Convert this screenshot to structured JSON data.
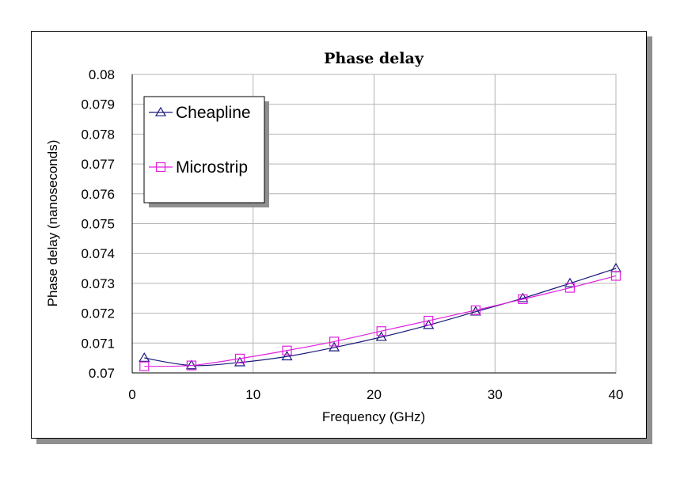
{
  "chart_data": {
    "type": "line",
    "title": "Phase delay",
    "xlabel": "Frequency (GHz)",
    "ylabel": "Phase delay (nanoseconds)",
    "xlim": [
      0,
      40
    ],
    "ylim": [
      0.07,
      0.08
    ],
    "xticks": [
      0,
      10,
      20,
      30,
      40
    ],
    "xtick_labels": [
      "0",
      "10",
      "20",
      "30",
      "40"
    ],
    "yticks": [
      0.07,
      0.071,
      0.072,
      0.073,
      0.074,
      0.075,
      0.076,
      0.077,
      0.078,
      0.079,
      0.08
    ],
    "ytick_labels": [
      "0.07",
      "0.071",
      "0.072",
      "0.073",
      "0.074",
      "0.075",
      "0.076",
      "0.077",
      "0.078",
      "0.079",
      "0.08"
    ],
    "grid": true,
    "legend_position": "top-left",
    "series": [
      {
        "name": "Cheapline",
        "color": "#1a1a7a",
        "marker": "triangle",
        "x": [
          1,
          4.9,
          8.9,
          12.8,
          16.7,
          20.6,
          24.5,
          28.4,
          32.3,
          36.2,
          40
        ],
        "y": [
          0.0705,
          0.07025,
          0.07035,
          0.07055,
          0.07085,
          0.0712,
          0.0716,
          0.07205,
          0.0725,
          0.073,
          0.0735
        ]
      },
      {
        "name": "Microstrip",
        "color": "#e020e0",
        "marker": "square",
        "x": [
          1,
          4.9,
          8.9,
          12.8,
          16.7,
          20.6,
          24.5,
          28.4,
          32.3,
          36.2,
          40
        ],
        "y": [
          0.07022,
          0.07025,
          0.07048,
          0.07075,
          0.07105,
          0.0714,
          0.07175,
          0.0721,
          0.07247,
          0.07285,
          0.07325
        ]
      }
    ]
  }
}
